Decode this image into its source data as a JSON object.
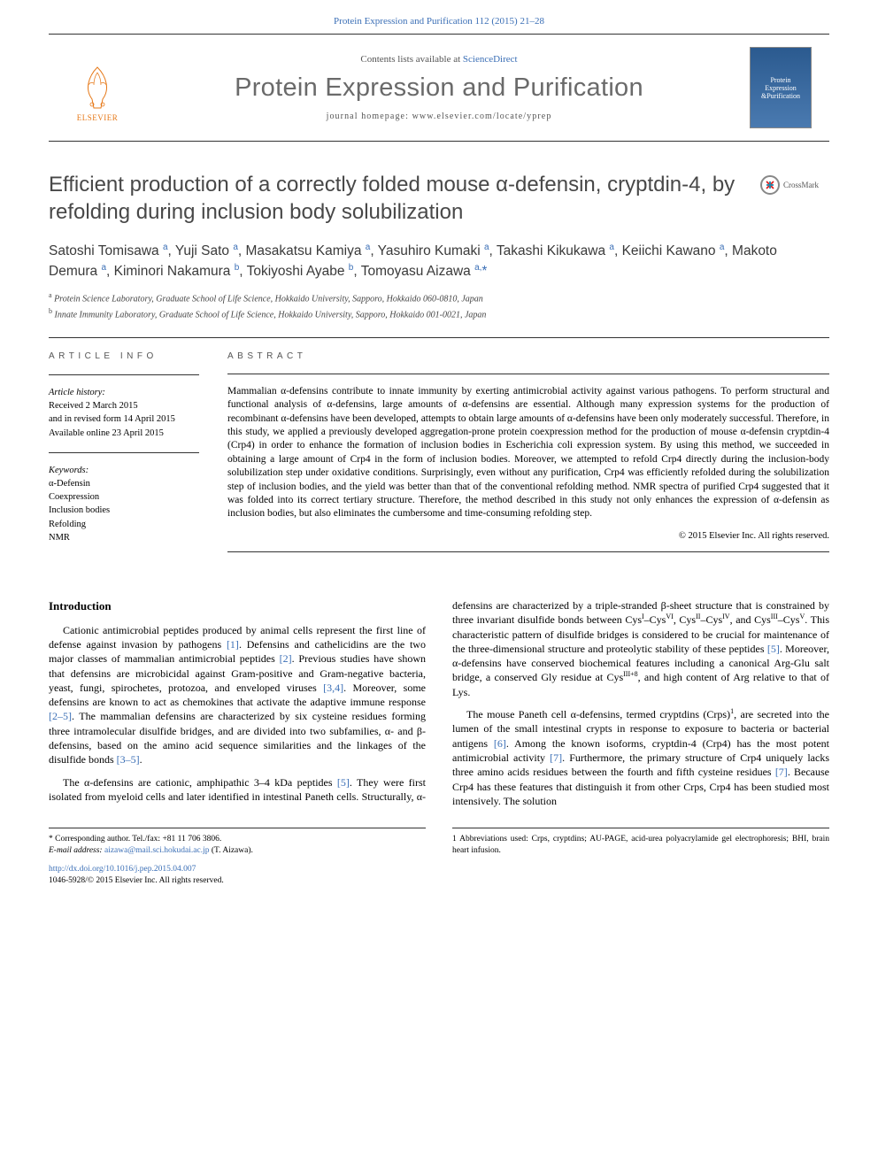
{
  "header": {
    "citation": "Protein Expression and Purification 112 (2015) 21–28",
    "contents_prefix": "Contents lists available at ",
    "contents_link": "ScienceDirect",
    "journal_name": "Protein Expression and Purification",
    "homepage_prefix": "journal homepage: ",
    "homepage_url": "www.elsevier.com/locate/yprep",
    "publisher": "ELSEVIER",
    "cover_line1": "Protein",
    "cover_line2": "Expression",
    "cover_line3": "&Purification",
    "crossmark": "CrossMark"
  },
  "title": "Efficient production of a correctly folded mouse α-defensin, cryptdin-4, by refolding during inclusion body solubilization",
  "authors_html": "Satoshi Tomisawa <sup>a</sup>, Yuji Sato <sup>a</sup>, Masakatsu Kamiya <sup>a</sup>, Yasuhiro Kumaki <sup>a</sup>, Takashi Kikukawa <sup>a</sup>, Keiichi Kawano <sup>a</sup>, Makoto Demura <sup>a</sup>, Kiminori Nakamura <sup>b</sup>, Tokiyoshi Ayabe <sup>b</sup>, Tomoyasu Aizawa <sup>a,</sup><span class=\"corr\">*</span>",
  "affiliations": {
    "a": "Protein Science Laboratory, Graduate School of Life Science, Hokkaido University, Sapporo, Hokkaido 060-0810, Japan",
    "b": "Innate Immunity Laboratory, Graduate School of Life Science, Hokkaido University, Sapporo, Hokkaido 001-0021, Japan"
  },
  "article_info": {
    "heading": "ARTICLE INFO",
    "history_label": "Article history:",
    "history": [
      "Received 2 March 2015",
      "and in revised form 14 April 2015",
      "Available online 23 April 2015"
    ],
    "keywords_label": "Keywords:",
    "keywords": [
      "α-Defensin",
      "Coexpression",
      "Inclusion bodies",
      "Refolding",
      "NMR"
    ]
  },
  "abstract": {
    "heading": "ABSTRACT",
    "text": "Mammalian α-defensins contribute to innate immunity by exerting antimicrobial activity against various pathogens. To perform structural and functional analysis of α-defensins, large amounts of α-defensins are essential. Although many expression systems for the production of recombinant α-defensins have been developed, attempts to obtain large amounts of α-defensins have been only moderately successful. Therefore, in this study, we applied a previously developed aggregation-prone protein coexpression method for the production of mouse α-defensin cryptdin-4 (Crp4) in order to enhance the formation of inclusion bodies in Escherichia coli expression system. By using this method, we succeeded in obtaining a large amount of Crp4 in the form of inclusion bodies. Moreover, we attempted to refold Crp4 directly during the inclusion-body solubilization step under oxidative conditions. Surprisingly, even without any purification, Crp4 was efficiently refolded during the solubilization step of inclusion bodies, and the yield was better than that of the conventional refolding method. NMR spectra of purified Crp4 suggested that it was folded into its correct tertiary structure. Therefore, the method described in this study not only enhances the expression of α-defensin as inclusion bodies, but also eliminates the cumbersome and time-consuming refolding step.",
    "copyright": "© 2015 Elsevier Inc. All rights reserved."
  },
  "introduction": {
    "heading": "Introduction",
    "p1": "Cationic antimicrobial peptides produced by animal cells represent the first line of defense against invasion by pathogens [1]. Defensins and cathelicidins are the two major classes of mammalian antimicrobial peptides [2]. Previous studies have shown that defensins are microbicidal against Gram-positive and Gram-negative bacteria, yeast, fungi, spirochetes, protozoa, and enveloped viruses [3,4]. Moreover, some defensins are known to act as chemokines that activate the adaptive immune response [2–5]. The mammalian defensins are characterized by six cysteine residues forming three intramolecular disulfide bridges, and are divided into two subfamilies, α- and β-defensins, based on the amino acid sequence similarities and the linkages of the disulfide bonds [3–5].",
    "p2": "The α-defensins are cationic, amphipathic 3–4 kDa peptides [5]. They were first isolated from myeloid cells and later identified in intestinal Paneth cells. Structurally, α-defensins are characterized by a triple-stranded β-sheet structure that is constrained by three invariant disulfide bonds between CysI–CysVI, CysII–CysIV, and CysIII–CysV. This characteristic pattern of disulfide bridges is considered to be crucial for maintenance of the three-dimensional structure and proteolytic stability of these peptides [5]. Moreover, α-defensins have conserved biochemical features including a canonical Arg-Glu salt bridge, a conserved Gly residue at CysIII+8, and high content of Arg relative to that of Lys.",
    "p3": "The mouse Paneth cell α-defensins, termed cryptdins (Crps)1, are secreted into the lumen of the small intestinal crypts in response to exposure to bacteria or bacterial antigens [6]. Among the known isoforms, cryptdin-4 (Crp4) has the most potent antimicrobial activity [7]. Furthermore, the primary structure of Crp4 uniquely lacks three amino acids residues between the fourth and fifth cysteine residues [7]. Because Crp4 has these features that distinguish it from other Crps, Crp4 has been studied most intensively. The solution"
  },
  "footnotes": {
    "left": {
      "corr_line": "* Corresponding author. Tel./fax: +81 11 706 3806.",
      "email_label": "E-mail address: ",
      "email": "aizawa@mail.sci.hokudai.ac.jp",
      "email_suffix": " (T. Aizawa)."
    },
    "right": {
      "text": "1 Abbreviations used: Crps, cryptdins; AU-PAGE, acid-urea polyacrylamide gel electrophoresis; BHI, brain heart infusion."
    }
  },
  "bottom": {
    "doi": "http://dx.doi.org/10.1016/j.pep.2015.04.007",
    "issn": "1046-5928/© 2015 Elsevier Inc. All rights reserved."
  },
  "colors": {
    "link": "#3b6fb6",
    "publisher": "#e67817",
    "journal_gray": "#6a6a6a"
  }
}
